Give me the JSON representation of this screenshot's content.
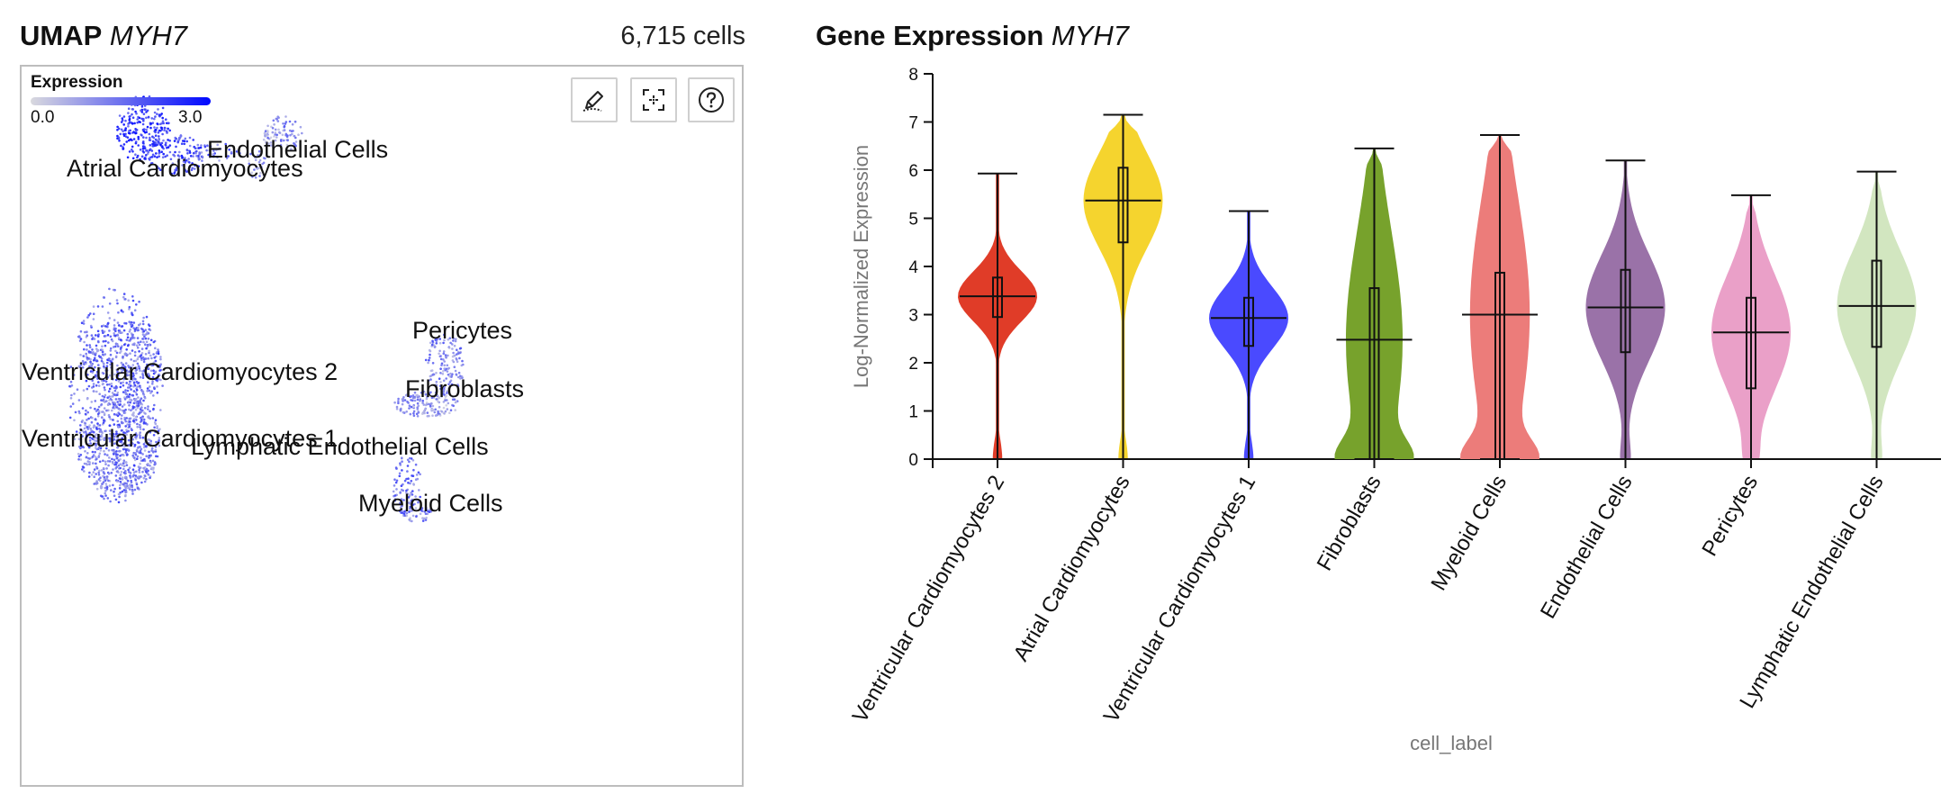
{
  "umap": {
    "title_prefix": "UMAP",
    "gene": "MYH7",
    "cell_count": "6,715 cells",
    "legend": {
      "title": "Expression",
      "min_label": "0.0",
      "max_label": "3.0",
      "low_color": "#d9d9de",
      "high_color": "#0008ff"
    },
    "tools": {
      "lasso_icon": "lasso-pencil-icon",
      "center_icon": "recenter-icon",
      "help_icon": "help-icon"
    },
    "clusters": [
      {
        "label": "Atrial Cardiomyocytes"
      },
      {
        "label": "Endothelial Cells"
      },
      {
        "label": "Pericytes"
      },
      {
        "label": "Ventricular Cardiomyocytes 2"
      },
      {
        "label": "Fibroblasts"
      },
      {
        "label": "Ventricular Cardiomyocytes 1"
      },
      {
        "label": "Lymphatic Endothelial Cells"
      },
      {
        "label": "Myeloid Cells"
      }
    ]
  },
  "violin": {
    "title_prefix": "Gene Expression",
    "gene": "MYH7"
  },
  "chart_data": {
    "type": "violin",
    "title": "Gene Expression MYH7",
    "xlabel": "cell_label",
    "ylabel": "Log-Normalized Expression",
    "ylim": [
      0,
      8
    ],
    "yticks": [
      "0",
      "1",
      "2",
      "3",
      "4",
      "5",
      "6",
      "7",
      "8"
    ],
    "categories": [
      "Ventricular Cardiomyocytes 2",
      "Atrial Cardiomyocytes",
      "Ventricular Cardiomyocytes 1",
      "Fibroblasts",
      "Myeloid Cells",
      "Endothelial Cells",
      "Pericytes",
      "Lymphatic Endothelial Cells"
    ],
    "colors": [
      "#e03c28",
      "#f5d42e",
      "#4a4aff",
      "#77a22c",
      "#ec7c7a",
      "#9a72a8",
      "#eaa0c8",
      "#d2e6c0"
    ],
    "series": [
      {
        "name": "Ventricular Cardiomyocytes 2",
        "min": 0,
        "q1": 2.95,
        "median": 3.38,
        "q3": 3.77,
        "max": 5.93
      },
      {
        "name": "Atrial Cardiomyocytes",
        "min": 0,
        "q1": 4.5,
        "median": 5.37,
        "q3": 6.05,
        "max": 7.15
      },
      {
        "name": "Ventricular Cardiomyocytes 1",
        "min": 0,
        "q1": 2.35,
        "median": 2.93,
        "q3": 3.35,
        "max": 5.15
      },
      {
        "name": "Fibroblasts",
        "min": 0,
        "q1": 0,
        "median": 2.48,
        "q3": 3.55,
        "max": 6.45
      },
      {
        "name": "Myeloid Cells",
        "min": 0,
        "q1": 0,
        "median": 3.0,
        "q3": 3.87,
        "max": 6.73
      },
      {
        "name": "Endothelial Cells",
        "min": 0,
        "q1": 2.22,
        "median": 3.15,
        "q3": 3.93,
        "max": 6.2
      },
      {
        "name": "Pericytes",
        "min": 0,
        "q1": 1.47,
        "median": 2.63,
        "q3": 3.35,
        "max": 5.48
      },
      {
        "name": "Lymphatic Endothelial Cells",
        "min": 0,
        "q1": 2.33,
        "median": 3.18,
        "q3": 4.12,
        "max": 5.97
      }
    ]
  }
}
